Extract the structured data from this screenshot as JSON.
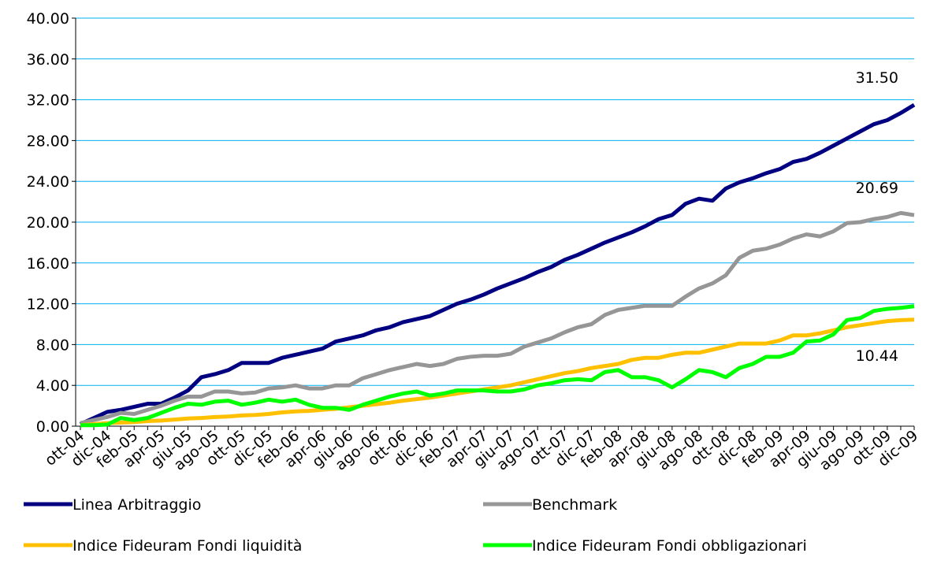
{
  "chart_data": {
    "type": "line",
    "categories": [
      "ott-04",
      null,
      "dic-04",
      null,
      "feb-05",
      null,
      "apr-05",
      null,
      "giu-05",
      null,
      "ago-05",
      null,
      "ott-05",
      null,
      "dic-05",
      null,
      "feb-06",
      null,
      "apr-06",
      null,
      "giu-06",
      null,
      "ago-06",
      null,
      "ott-06",
      null,
      "dic-06",
      null,
      "feb-07",
      null,
      "apr-07",
      null,
      "giu-07",
      null,
      "ago-07",
      null,
      "ott-07",
      null,
      "dic-07",
      null,
      "feb-08",
      null,
      "apr-08",
      null,
      "giu-08",
      null,
      "ago-08",
      null,
      "ott-08",
      null,
      "dic-08",
      null,
      "feb-09",
      null,
      "apr-09",
      null,
      "giu-09",
      null,
      "ago-09",
      null,
      "ott-09",
      null,
      "dic-09"
    ],
    "series": [
      {
        "name": "Linea Arbitraggio",
        "color": "#000080",
        "values": [
          0.2,
          0.8,
          1.4,
          1.6,
          1.9,
          2.2,
          2.2,
          2.8,
          3.5,
          4.8,
          5.1,
          5.5,
          6.2,
          6.2,
          6.2,
          6.7,
          7.0,
          7.3,
          7.6,
          8.3,
          8.6,
          8.9,
          9.4,
          9.7,
          10.2,
          10.5,
          10.8,
          11.4,
          12.0,
          12.4,
          12.9,
          13.5,
          14.0,
          14.5,
          15.1,
          15.6,
          16.3,
          16.8,
          17.4,
          18.0,
          18.5,
          19.0,
          19.6,
          20.3,
          20.7,
          21.8,
          22.3,
          22.1,
          23.3,
          23.9,
          24.3,
          24.8,
          25.2,
          25.9,
          26.2,
          26.8,
          27.5,
          28.2,
          28.9,
          29.6,
          30.0,
          30.7,
          31.5
        ],
        "value_labels": [
          null,
          null,
          null,
          null,
          null,
          null,
          null,
          null,
          null,
          null,
          null,
          null,
          null,
          null,
          null,
          null,
          null,
          null,
          null,
          null,
          null,
          null,
          null,
          null,
          null,
          null,
          null,
          null,
          null,
          null,
          null,
          null,
          null,
          null,
          null,
          null,
          null,
          null,
          null,
          null,
          null,
          null,
          null,
          null,
          null,
          null,
          null,
          null,
          null,
          null,
          null,
          null,
          null,
          null,
          null,
          null,
          null,
          null,
          null,
          null,
          null,
          null,
          "31.50"
        ]
      },
      {
        "name": "Benchmark",
        "color": "#969696",
        "values": [
          0.3,
          0.6,
          0.9,
          1.3,
          1.2,
          1.6,
          2.0,
          2.5,
          2.9,
          2.9,
          3.4,
          3.4,
          3.2,
          3.3,
          3.7,
          3.8,
          4.0,
          3.7,
          3.7,
          4.0,
          4.0,
          4.7,
          5.1,
          5.5,
          5.8,
          6.1,
          5.9,
          6.1,
          6.6,
          6.8,
          6.9,
          6.9,
          7.1,
          7.8,
          8.2,
          8.6,
          9.2,
          9.7,
          10.0,
          10.9,
          11.4,
          11.6,
          11.8,
          11.8,
          11.8,
          12.7,
          13.5,
          14.0,
          14.8,
          16.5,
          17.2,
          17.4,
          17.8,
          18.4,
          18.8,
          18.6,
          19.1,
          19.9,
          20.0,
          20.3,
          20.5,
          20.9,
          20.69
        ],
        "value_labels": [
          null,
          null,
          null,
          null,
          null,
          null,
          null,
          null,
          null,
          null,
          null,
          null,
          null,
          null,
          null,
          null,
          null,
          null,
          null,
          null,
          null,
          null,
          null,
          null,
          null,
          null,
          null,
          null,
          null,
          null,
          null,
          null,
          null,
          null,
          null,
          null,
          null,
          null,
          null,
          null,
          null,
          null,
          null,
          null,
          null,
          null,
          null,
          null,
          null,
          null,
          null,
          null,
          null,
          null,
          null,
          null,
          null,
          null,
          null,
          null,
          null,
          null,
          "20.69"
        ]
      },
      {
        "name": "Indice Fideuram Fondi liquidità",
        "color": "#ffc000",
        "values": [
          0.1,
          0.2,
          0.3,
          0.35,
          0.4,
          0.5,
          0.55,
          0.65,
          0.75,
          0.8,
          0.9,
          0.95,
          1.05,
          1.1,
          1.2,
          1.35,
          1.45,
          1.5,
          1.6,
          1.7,
          1.85,
          2.0,
          2.15,
          2.3,
          2.5,
          2.65,
          2.8,
          3.0,
          3.2,
          3.4,
          3.6,
          3.8,
          4.0,
          4.3,
          4.6,
          4.9,
          5.2,
          5.4,
          5.7,
          5.9,
          6.1,
          6.5,
          6.7,
          6.7,
          7.0,
          7.2,
          7.2,
          7.5,
          7.8,
          8.1,
          8.1,
          8.1,
          8.4,
          8.9,
          8.9,
          9.1,
          9.4,
          9.7,
          9.9,
          10.1,
          10.3,
          10.4,
          10.44
        ],
        "value_labels": [
          null,
          null,
          null,
          null,
          null,
          null,
          null,
          null,
          null,
          null,
          null,
          null,
          null,
          null,
          null,
          null,
          null,
          null,
          null,
          null,
          null,
          null,
          null,
          null,
          null,
          null,
          null,
          null,
          null,
          null,
          null,
          null,
          null,
          null,
          null,
          null,
          null,
          null,
          null,
          null,
          null,
          null,
          null,
          null,
          null,
          null,
          null,
          null,
          null,
          null,
          null,
          null,
          null,
          null,
          null,
          null,
          null,
          null,
          null,
          null,
          null,
          null,
          "10.44"
        ]
      },
      {
        "name": "Indice Fideuram Fondi obbligazionari",
        "color": "#00ff00",
        "values": [
          0.1,
          0.1,
          0.15,
          0.8,
          0.6,
          0.8,
          1.3,
          1.8,
          2.2,
          2.1,
          2.4,
          2.5,
          2.1,
          2.3,
          2.6,
          2.4,
          2.6,
          2.1,
          1.8,
          1.8,
          1.6,
          2.1,
          2.5,
          2.9,
          3.2,
          3.4,
          3.0,
          3.2,
          3.5,
          3.5,
          3.5,
          3.4,
          3.4,
          3.6,
          4.0,
          4.2,
          4.5,
          4.6,
          4.5,
          5.3,
          5.5,
          4.8,
          4.8,
          4.5,
          3.8,
          4.6,
          5.5,
          5.3,
          4.8,
          5.7,
          6.1,
          6.8,
          6.8,
          7.2,
          8.3,
          8.4,
          9.0,
          10.4,
          10.6,
          11.3,
          11.5,
          11.6,
          11.76
        ]
      }
    ],
    "ylim": [
      0,
      40
    ],
    "yticks": [
      {
        "value": 0,
        "label": "0.00"
      },
      {
        "value": 4,
        "label": "4.00"
      },
      {
        "value": 8,
        "label": "8.00"
      },
      {
        "value": 12,
        "label": "12.00"
      },
      {
        "value": 16,
        "label": "16.00"
      },
      {
        "value": 20,
        "label": "20.00"
      },
      {
        "value": 24,
        "label": "24.00"
      },
      {
        "value": 28,
        "label": "28.00"
      },
      {
        "value": 32,
        "label": "32.00"
      },
      {
        "value": 36,
        "label": "36.00"
      },
      {
        "value": 40,
        "label": "40.00"
      }
    ],
    "grid": true,
    "legend": "bottom"
  }
}
